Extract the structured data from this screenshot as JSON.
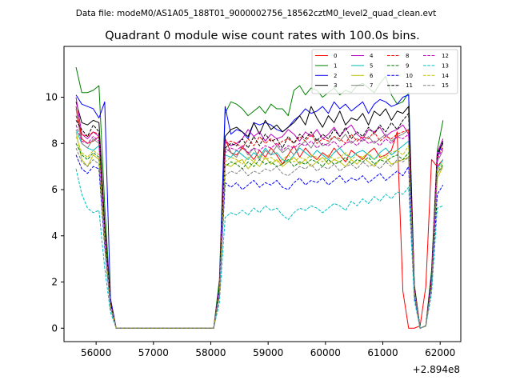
{
  "header": {
    "data_file": "Data file: modeM0/AS1A05_188T01_9000002756_18562cztM0_level2_quad_clean.evt"
  },
  "chart_data": {
    "type": "line",
    "title": "Quadrant 0 module wise count rates with 100.0s bins.",
    "xlabel": "",
    "ylabel": "",
    "x_offset_label": "+2.894e8",
    "xlim": [
      55440,
      62360
    ],
    "ylim": [
      -0.58,
      12.2
    ],
    "x_ticks": [
      56000,
      57000,
      58000,
      59000,
      60000,
      61000,
      62000
    ],
    "x_tick_labels": [
      "56000",
      "57000",
      "58000",
      "59000",
      "60000",
      "61000",
      "62000"
    ],
    "y_ticks": [
      0,
      2,
      4,
      6,
      8,
      10
    ],
    "y_tick_labels": [
      "0",
      "2",
      "4",
      "6",
      "8",
      "10"
    ],
    "legend": {
      "placement": "top-right",
      "columns": 4
    },
    "x": [
      55650,
      55750,
      55850,
      55950,
      56050,
      56150,
      56250,
      56350,
      56450,
      56550,
      56650,
      56750,
      56850,
      56950,
      57050,
      57150,
      57250,
      57350,
      57450,
      57550,
      57650,
      57750,
      57850,
      57950,
      58050,
      58150,
      58250,
      58350,
      58450,
      58550,
      58650,
      58750,
      58850,
      58950,
      59050,
      59150,
      59250,
      59350,
      59450,
      59550,
      59650,
      59750,
      59850,
      59950,
      60050,
      60150,
      60250,
      60350,
      60450,
      60550,
      60650,
      60750,
      60850,
      60950,
      61050,
      61150,
      61250,
      61350,
      61450,
      61550,
      61650,
      61750,
      61850,
      61950,
      62050
    ],
    "series": [
      {
        "name": "0",
        "color": "#ff0000",
        "dashed": false,
        "values": [
          9.6,
          8.2,
          8.0,
          8.1,
          8.3,
          4.3,
          1.1,
          0,
          0,
          0,
          0,
          0,
          0,
          0,
          0,
          0,
          0,
          0,
          0,
          0,
          0,
          0,
          0,
          0,
          0,
          1.6,
          8.2,
          7.6,
          7.5,
          7.8,
          7.6,
          7.3,
          7.7,
          7.4,
          7.8,
          7.5,
          7.1,
          7.5,
          7.9,
          7.4,
          7.8,
          7.5,
          7.3,
          7.6,
          7.4,
          7.8,
          7.5,
          7.2,
          7.7,
          7.5,
          7.3,
          7.6,
          7.8,
          7.4,
          7.5,
          7.7,
          8.5,
          1.6,
          0,
          0,
          0.1,
          1.8,
          7.3,
          7.0,
          7.3
        ]
      },
      {
        "name": "1",
        "color": "#008000",
        "dashed": false,
        "values": [
          11.3,
          10.2,
          10.2,
          10.3,
          10.5,
          5.3,
          1.2,
          0,
          0,
          0,
          0,
          0,
          0,
          0,
          0,
          0,
          0,
          0,
          0,
          0,
          0,
          0,
          0,
          0,
          0,
          2.1,
          9.3,
          9.8,
          9.7,
          9.5,
          9.2,
          9.4,
          9.6,
          9.3,
          9.7,
          9.5,
          9.5,
          9.2,
          10.3,
          10.5,
          10.1,
          10.4,
          10.3,
          10.0,
          10.2,
          10.4,
          10.1,
          10.3,
          10.2,
          10.5,
          10.6,
          10.4,
          10.2,
          10.6,
          10.9,
          10.1,
          9.7,
          9.8,
          10.2,
          1.9,
          0,
          0.1,
          2.5,
          7.7,
          9.0
        ]
      },
      {
        "name": "2",
        "color": "#0000ff",
        "dashed": false,
        "values": [
          10.1,
          9.7,
          9.6,
          9.5,
          9.1,
          9.8,
          1.3,
          0,
          0,
          0,
          0,
          0,
          0,
          0,
          0,
          0,
          0,
          0,
          0,
          0,
          0,
          0,
          0,
          0,
          0,
          1.8,
          9.6,
          8.4,
          8.6,
          8.5,
          8.2,
          8.9,
          8.8,
          8.9,
          8.8,
          8.6,
          8.5,
          8.7,
          9.0,
          9.2,
          9.5,
          9.3,
          9.4,
          9.6,
          9.3,
          9.8,
          9.5,
          9.7,
          9.4,
          9.6,
          9.8,
          9.3,
          9.7,
          9.9,
          9.8,
          9.6,
          9.7,
          10.0,
          10.1,
          1.7,
          0,
          0.1,
          2.3,
          7.4,
          8.1
        ]
      },
      {
        "name": "3",
        "color": "#000000",
        "dashed": false,
        "values": [
          9.8,
          8.9,
          8.8,
          9.0,
          8.9,
          4.5,
          1.1,
          0,
          0,
          0,
          0,
          0,
          0,
          0,
          0,
          0,
          0,
          0,
          0,
          0,
          0,
          0,
          0,
          0,
          0,
          1.7,
          8.3,
          8.6,
          8.7,
          8.5,
          8.3,
          8.9,
          8.4,
          9.0,
          8.6,
          8.8,
          8.5,
          8.7,
          8.9,
          9.2,
          8.8,
          9.6,
          9.1,
          8.7,
          9.2,
          8.9,
          9.4,
          8.8,
          9.1,
          9.0,
          9.3,
          8.8,
          9.4,
          9.2,
          9.5,
          9.0,
          9.4,
          9.3,
          9.6,
          1.8,
          0,
          0.1,
          2.1,
          7.6,
          8.0
        ]
      },
      {
        "name": "4",
        "color": "#bf00bf",
        "dashed": false,
        "values": [
          10.0,
          8.4,
          8.2,
          8.5,
          8.3,
          4.2,
          1.1,
          0,
          0,
          0,
          0,
          0,
          0,
          0,
          0,
          0,
          0,
          0,
          0,
          0,
          0,
          0,
          0,
          0,
          0,
          1.7,
          8.1,
          7.9,
          8.0,
          8.2,
          8.6,
          8.3,
          8.5,
          8.1,
          8.4,
          8.2,
          8.3,
          8.6,
          8.4,
          8.1,
          8.5,
          8.3,
          8.6,
          8.2,
          8.4,
          8.7,
          8.3,
          8.6,
          8.8,
          8.4,
          8.2,
          8.6,
          8.5,
          8.7,
          8.3,
          8.5,
          8.6,
          8.8,
          8.4,
          1.7,
          0,
          0.1,
          2.2,
          7.6,
          8.2
        ]
      },
      {
        "name": "5",
        "color": "#00bfbf",
        "dashed": false,
        "values": [
          8.6,
          8.0,
          7.8,
          7.7,
          7.9,
          3.9,
          1.0,
          0,
          0,
          0,
          0,
          0,
          0,
          0,
          0,
          0,
          0,
          0,
          0,
          0,
          0,
          0,
          0,
          0,
          0,
          1.5,
          7.5,
          7.4,
          7.7,
          7.5,
          7.3,
          7.6,
          7.4,
          7.8,
          7.5,
          7.6,
          7.3,
          7.2,
          7.5,
          7.8,
          7.6,
          7.4,
          7.7,
          7.5,
          7.3,
          7.6,
          7.8,
          7.5,
          7.4,
          7.6,
          7.7,
          7.5,
          7.3,
          7.6,
          7.8,
          7.5,
          7.7,
          7.9,
          8.1,
          1.6,
          0,
          0.1,
          1.9,
          6.9,
          7.3
        ]
      },
      {
        "name": "6",
        "color": "#bfbf00",
        "dashed": false,
        "values": [
          8.5,
          7.3,
          7.0,
          7.5,
          7.3,
          3.7,
          1.0,
          0,
          0,
          0,
          0,
          0,
          0,
          0,
          0,
          0,
          0,
          0,
          0,
          0,
          0,
          0,
          0,
          0,
          0,
          1.5,
          7.1,
          7.0,
          7.2,
          7.3,
          6.9,
          7.2,
          7.0,
          7.4,
          7.1,
          7.3,
          7.0,
          7.2,
          7.4,
          7.1,
          7.3,
          7.0,
          7.2,
          7.4,
          7.1,
          7.3,
          7.2,
          7.0,
          7.3,
          7.1,
          7.4,
          7.2,
          7.0,
          7.3,
          7.4,
          7.1,
          7.2,
          7.3,
          7.4,
          1.5,
          0,
          0.1,
          1.9,
          6.5,
          7.0
        ]
      },
      {
        "name": "7",
        "color": "#808080",
        "dashed": false,
        "values": [
          9.5,
          8.0,
          7.8,
          8.2,
          8.0,
          4.0,
          1.0,
          0,
          0,
          0,
          0,
          0,
          0,
          0,
          0,
          0,
          0,
          0,
          0,
          0,
          0,
          0,
          0,
          0,
          0,
          1.6,
          7.8,
          7.6,
          7.4,
          7.9,
          7.5,
          7.8,
          7.3,
          7.7,
          7.5,
          7.9,
          7.6,
          7.8,
          7.5,
          7.9,
          8.1,
          7.8,
          8.2,
          7.9,
          8.0,
          8.3,
          8.1,
          8.4,
          8.0,
          8.2,
          8.1,
          8.3,
          8.0,
          8.2,
          8.4,
          8.1,
          8.3,
          8.4,
          8.6,
          1.7,
          0,
          0.1,
          2.0,
          7.2,
          7.7
        ]
      },
      {
        "name": "8",
        "color": "#ff0000",
        "dashed": true,
        "values": [
          9.2,
          8.4,
          8.3,
          8.5,
          8.4,
          4.2,
          1.1,
          0,
          0,
          0,
          0,
          0,
          0,
          0,
          0,
          0,
          0,
          0,
          0,
          0,
          0,
          0,
          0,
          0,
          0,
          1.6,
          8.0,
          8.1,
          8.0,
          7.8,
          8.2,
          7.9,
          8.3,
          8.0,
          8.2,
          7.9,
          8.1,
          8.2,
          8.0,
          8.3,
          8.1,
          8.4,
          8.0,
          8.2,
          8.1,
          8.3,
          8.2,
          8.0,
          8.4,
          8.1,
          8.3,
          8.2,
          8.5,
          8.1,
          8.3,
          8.2,
          8.4,
          8.5,
          8.6,
          1.7,
          0,
          0.1,
          2.1,
          7.4,
          7.9
        ]
      },
      {
        "name": "9",
        "color": "#008000",
        "dashed": true,
        "values": [
          8.0,
          7.5,
          7.3,
          7.6,
          7.4,
          3.8,
          1.0,
          0,
          0,
          0,
          0,
          0,
          0,
          0,
          0,
          0,
          0,
          0,
          0,
          0,
          0,
          0,
          0,
          0,
          0,
          1.5,
          7.0,
          7.2,
          7.1,
          6.9,
          7.2,
          7.0,
          7.3,
          7.1,
          7.2,
          7.0,
          7.1,
          7.3,
          7.0,
          7.2,
          7.1,
          7.3,
          7.2,
          7.0,
          7.3,
          7.1,
          7.2,
          7.4,
          7.1,
          7.3,
          7.2,
          7.4,
          7.1,
          7.3,
          7.2,
          7.4,
          7.5,
          7.3,
          7.6,
          1.5,
          0,
          0.1,
          1.9,
          6.7,
          7.1
        ]
      },
      {
        "name": "10",
        "color": "#0000ff",
        "dashed": true,
        "values": [
          7.5,
          6.9,
          6.7,
          7.0,
          6.9,
          3.5,
          0.9,
          0,
          0,
          0,
          0,
          0,
          0,
          0,
          0,
          0,
          0,
          0,
          0,
          0,
          0,
          0,
          0,
          0,
          0,
          1.4,
          6.3,
          6.1,
          6.3,
          6.0,
          6.2,
          6.4,
          6.1,
          6.3,
          6.2,
          6.4,
          6.1,
          6.0,
          6.3,
          6.5,
          6.2,
          6.4,
          6.3,
          6.5,
          6.2,
          6.4,
          6.6,
          6.3,
          6.5,
          6.4,
          6.6,
          6.3,
          6.5,
          6.7,
          6.4,
          6.6,
          6.8,
          6.6,
          7.0,
          1.4,
          0,
          0.1,
          1.8,
          5.8,
          6.2
        ]
      },
      {
        "name": "11",
        "color": "#000000",
        "dashed": true,
        "values": [
          9.0,
          8.6,
          8.3,
          8.8,
          8.5,
          4.3,
          1.1,
          0,
          0,
          0,
          0,
          0,
          0,
          0,
          0,
          0,
          0,
          0,
          0,
          0,
          0,
          0,
          0,
          0,
          0,
          1.6,
          7.8,
          8.0,
          7.9,
          8.2,
          7.8,
          8.3,
          7.9,
          8.4,
          8.1,
          8.2,
          7.8,
          8.3,
          8.0,
          8.4,
          8.2,
          8.5,
          8.1,
          8.4,
          8.2,
          8.6,
          8.3,
          8.7,
          8.2,
          8.5,
          8.3,
          8.7,
          8.4,
          8.8,
          8.5,
          8.9,
          8.6,
          9.0,
          9.3,
          1.8,
          0,
          0.1,
          2.2,
          7.5,
          8.1
        ]
      },
      {
        "name": "12",
        "color": "#bf00bf",
        "dashed": true,
        "values": [
          8.8,
          8.1,
          8.0,
          8.3,
          8.1,
          4.1,
          1.0,
          0,
          0,
          0,
          0,
          0,
          0,
          0,
          0,
          0,
          0,
          0,
          0,
          0,
          0,
          0,
          0,
          0,
          0,
          1.6,
          7.6,
          7.8,
          7.7,
          7.9,
          7.6,
          7.8,
          7.7,
          7.9,
          7.8,
          8.0,
          7.7,
          7.9,
          7.8,
          8.0,
          7.9,
          8.1,
          7.8,
          8.0,
          7.9,
          8.1,
          7.8,
          8.0,
          8.1,
          7.9,
          8.2,
          8.0,
          8.1,
          7.9,
          8.2,
          8.0,
          8.3,
          8.2,
          8.4,
          1.7,
          0,
          0.1,
          2.0,
          7.3,
          7.8
        ]
      },
      {
        "name": "13",
        "color": "#00bfbf",
        "dashed": true,
        "values": [
          6.9,
          5.8,
          5.2,
          5.0,
          5.1,
          2.6,
          0.7,
          0,
          0,
          0,
          0,
          0,
          0,
          0,
          0,
          0,
          0,
          0,
          0,
          0,
          0,
          0,
          0,
          0,
          0,
          1.1,
          4.8,
          5.0,
          4.9,
          5.1,
          4.9,
          5.2,
          5.0,
          5.3,
          5.1,
          5.2,
          4.9,
          4.7,
          5.0,
          5.2,
          5.1,
          5.3,
          5.2,
          5.0,
          5.2,
          5.4,
          5.3,
          5.1,
          5.5,
          5.3,
          5.6,
          5.4,
          5.7,
          5.5,
          5.8,
          5.6,
          5.9,
          5.8,
          6.1,
          1.2,
          0,
          0.1,
          1.5,
          5.2,
          5.3
        ]
      },
      {
        "name": "14",
        "color": "#bfbf00",
        "dashed": true,
        "values": [
          8.3,
          7.6,
          7.4,
          7.7,
          7.5,
          3.8,
          1.0,
          0,
          0,
          0,
          0,
          0,
          0,
          0,
          0,
          0,
          0,
          0,
          0,
          0,
          0,
          0,
          0,
          0,
          0,
          1.5,
          7.2,
          7.4,
          7.3,
          7.1,
          7.4,
          7.2,
          7.5,
          7.3,
          7.4,
          7.2,
          7.3,
          7.5,
          7.2,
          7.4,
          7.3,
          7.5,
          7.4,
          7.2,
          7.5,
          7.3,
          7.4,
          7.6,
          7.3,
          7.5,
          7.4,
          7.6,
          7.3,
          7.5,
          7.4,
          7.6,
          7.7,
          7.5,
          7.9,
          1.6,
          0,
          0.1,
          1.9,
          6.8,
          7.2
        ]
      },
      {
        "name": "15",
        "color": "#808080",
        "dashed": true,
        "values": [
          7.8,
          7.2,
          7.0,
          7.3,
          7.1,
          3.6,
          0.9,
          0,
          0,
          0,
          0,
          0,
          0,
          0,
          0,
          0,
          0,
          0,
          0,
          0,
          0,
          0,
          0,
          0,
          0,
          1.4,
          6.6,
          6.8,
          6.7,
          6.9,
          6.6,
          6.8,
          6.7,
          6.9,
          6.8,
          7.0,
          6.7,
          6.6,
          6.8,
          7.0,
          6.9,
          7.1,
          6.8,
          7.0,
          6.9,
          7.1,
          6.8,
          7.0,
          7.1,
          6.9,
          7.2,
          7.0,
          7.1,
          6.9,
          7.2,
          7.0,
          7.3,
          7.2,
          7.4,
          1.5,
          0,
          0.1,
          1.8,
          6.7,
          7.0
        ]
      }
    ]
  }
}
